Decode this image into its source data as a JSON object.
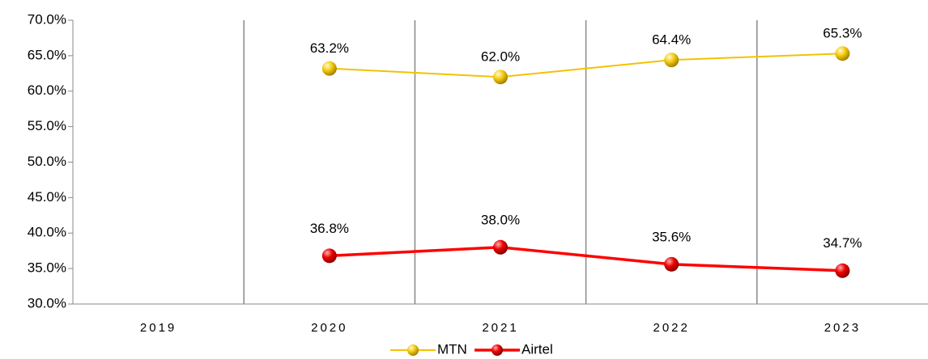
{
  "chart_data": {
    "type": "line",
    "categories": [
      "2019",
      "2020",
      "2021",
      "2022",
      "2023"
    ],
    "series": [
      {
        "name": "MTN",
        "color": "#f2c200",
        "values": [
          null,
          63.2,
          62.0,
          64.4,
          65.3
        ],
        "value_labels": [
          null,
          "63.2%",
          "62.0%",
          "64.4%",
          "65.3%"
        ]
      },
      {
        "name": "Airtel",
        "color": "#ff0000",
        "values": [
          null,
          36.8,
          38.0,
          35.6,
          34.7
        ],
        "value_labels": [
          null,
          "36.8%",
          "38.0%",
          "35.6%",
          "34.7%"
        ]
      }
    ],
    "ylim": [
      30,
      70
    ],
    "yticks": [
      {
        "value": 30,
        "label": "30.0%"
      },
      {
        "value": 35,
        "label": "35.0%"
      },
      {
        "value": 40,
        "label": "40.0%"
      },
      {
        "value": 45,
        "label": "45.0%"
      },
      {
        "value": 50,
        "label": "50.0%"
      },
      {
        "value": 55,
        "label": "55.0%"
      },
      {
        "value": 60,
        "label": "60.0%"
      },
      {
        "value": 65,
        "label": "65.0%"
      },
      {
        "value": 70,
        "label": "70.0%"
      }
    ],
    "legend": "bottom"
  }
}
